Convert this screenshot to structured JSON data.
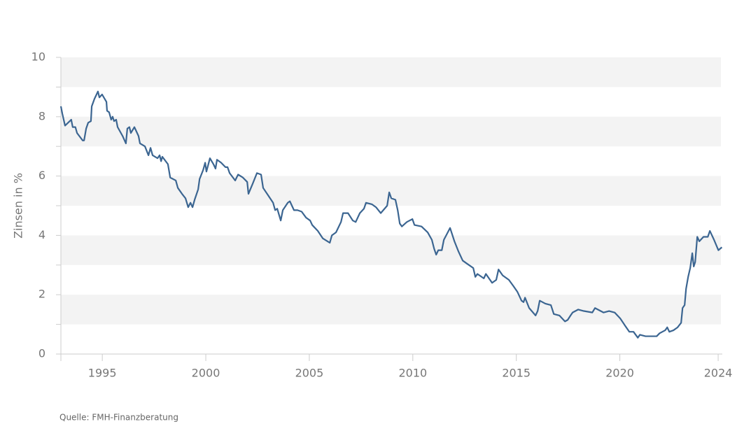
{
  "chart_data": {
    "type": "line",
    "y_label": "Zinsen in %",
    "source": "Quelle: FMH-Finanzberatung",
    "xlim": [
      1993,
      2024.95
    ],
    "xticks": [
      1995,
      2000,
      2005,
      2010,
      2015,
      2020,
      {
        "value": 2024.75,
        "label": "2024"
      }
    ],
    "ylim": [
      0,
      10
    ],
    "yticks": [
      0,
      2,
      4,
      6,
      8,
      10
    ],
    "yminorticks": [
      1,
      3,
      5,
      7,
      9
    ],
    "bands": true,
    "series": [
      {
        "name": "Zinsen",
        "color": "#3b6591",
        "x": [
          1993.0,
          1993.07,
          1993.2,
          1993.5,
          1993.57,
          1993.7,
          1993.78,
          1994.05,
          1994.12,
          1994.22,
          1994.32,
          1994.45,
          1994.49,
          1994.62,
          1994.79,
          1994.86,
          1994.99,
          1995.2,
          1995.23,
          1995.33,
          1995.43,
          1995.5,
          1995.57,
          1995.67,
          1995.74,
          1995.98,
          1996.14,
          1996.21,
          1996.31,
          1996.38,
          1996.55,
          1996.75,
          1996.82,
          1997.06,
          1997.23,
          1997.33,
          1997.43,
          1997.67,
          1997.77,
          1997.84,
          1997.9,
          1998.17,
          1998.28,
          1998.55,
          1998.65,
          1998.85,
          1999.02,
          1999.15,
          1999.26,
          1999.36,
          1999.46,
          1999.63,
          1999.7,
          1999.87,
          1999.97,
          2000.03,
          2000.2,
          2000.37,
          2000.47,
          2000.54,
          2000.74,
          2000.95,
          2001.05,
          2001.15,
          2001.42,
          2001.56,
          2001.79,
          2002.0,
          2002.06,
          2002.27,
          2002.47,
          2002.67,
          2002.77,
          2003.01,
          2003.25,
          2003.35,
          2003.45,
          2003.62,
          2003.72,
          2003.96,
          2004.06,
          2004.26,
          2004.43,
          2004.63,
          2004.84,
          2005.04,
          2005.14,
          2005.41,
          2005.65,
          2005.88,
          2005.99,
          2006.09,
          2006.29,
          2006.53,
          2006.63,
          2006.87,
          2007.1,
          2007.24,
          2007.44,
          2007.64,
          2007.74,
          2008.02,
          2008.22,
          2008.45,
          2008.76,
          2008.86,
          2008.96,
          2009.16,
          2009.27,
          2009.37,
          2009.47,
          2009.71,
          2009.98,
          2010.08,
          2010.42,
          2010.72,
          2010.92,
          2011.03,
          2011.13,
          2011.23,
          2011.4,
          2011.5,
          2011.8,
          2012.01,
          2012.21,
          2012.41,
          2012.61,
          2012.92,
          2013.02,
          2013.12,
          2013.43,
          2013.53,
          2013.83,
          2014.03,
          2014.14,
          2014.34,
          2014.64,
          2014.85,
          2015.05,
          2015.25,
          2015.35,
          2015.42,
          2015.62,
          2015.93,
          2016.03,
          2016.13,
          2016.4,
          2016.67,
          2016.81,
          2017.08,
          2017.35,
          2017.48,
          2017.62,
          2017.72,
          2017.99,
          2018.26,
          2018.67,
          2018.8,
          2019.21,
          2019.48,
          2019.75,
          2020.02,
          2020.26,
          2020.46,
          2020.66,
          2020.87,
          2020.97,
          2021.24,
          2021.51,
          2021.78,
          2021.92,
          2022.19,
          2022.29,
          2022.39,
          2022.59,
          2022.79,
          2022.96,
          2023.03,
          2023.13,
          2023.2,
          2023.3,
          2023.4,
          2023.5,
          2023.57,
          2023.64,
          2023.74,
          2023.84,
          2024.04,
          2024.25,
          2024.35,
          2024.55,
          2024.76,
          2024.93
        ],
        "values": [
          8.35,
          8.1,
          7.7,
          7.9,
          7.65,
          7.65,
          7.45,
          7.2,
          7.2,
          7.6,
          7.8,
          7.85,
          8.35,
          8.6,
          8.85,
          8.65,
          8.75,
          8.5,
          8.2,
          8.15,
          7.9,
          8.0,
          7.85,
          7.9,
          7.65,
          7.35,
          7.1,
          7.6,
          7.65,
          7.45,
          7.65,
          7.35,
          7.1,
          7.0,
          6.7,
          6.95,
          6.7,
          6.6,
          6.7,
          6.5,
          6.65,
          6.4,
          5.95,
          5.85,
          5.6,
          5.4,
          5.25,
          4.95,
          5.1,
          4.95,
          5.2,
          5.55,
          5.9,
          6.2,
          6.45,
          6.15,
          6.6,
          6.4,
          6.25,
          6.55,
          6.45,
          6.3,
          6.3,
          6.1,
          5.85,
          6.05,
          5.95,
          5.8,
          5.4,
          5.75,
          6.1,
          6.05,
          5.6,
          5.35,
          5.1,
          4.85,
          4.9,
          4.5,
          4.85,
          5.1,
          5.15,
          4.85,
          4.85,
          4.8,
          4.6,
          4.5,
          4.35,
          4.15,
          3.9,
          3.8,
          3.75,
          4.0,
          4.1,
          4.45,
          4.75,
          4.75,
          4.5,
          4.45,
          4.75,
          4.9,
          5.1,
          5.05,
          4.95,
          4.75,
          5.0,
          5.45,
          5.25,
          5.2,
          4.85,
          4.4,
          4.3,
          4.45,
          4.55,
          4.35,
          4.3,
          4.1,
          3.85,
          3.55,
          3.35,
          3.5,
          3.5,
          3.85,
          4.25,
          3.8,
          3.45,
          3.15,
          3.05,
          2.9,
          2.6,
          2.7,
          2.55,
          2.7,
          2.4,
          2.5,
          2.85,
          2.65,
          2.5,
          2.3,
          2.1,
          1.8,
          1.75,
          1.9,
          1.55,
          1.3,
          1.45,
          1.8,
          1.7,
          1.65,
          1.35,
          1.3,
          1.1,
          1.15,
          1.3,
          1.4,
          1.5,
          1.45,
          1.4,
          1.55,
          1.4,
          1.45,
          1.4,
          1.2,
          0.95,
          0.75,
          0.75,
          0.55,
          0.65,
          0.6,
          0.6,
          0.6,
          0.7,
          0.8,
          0.9,
          0.75,
          0.8,
          0.9,
          1.05,
          1.55,
          1.65,
          2.2,
          2.6,
          2.9,
          3.4,
          2.95,
          3.1,
          3.95,
          3.8,
          3.95,
          3.95,
          4.15,
          3.85,
          3.5,
          3.6
        ]
      }
    ]
  }
}
